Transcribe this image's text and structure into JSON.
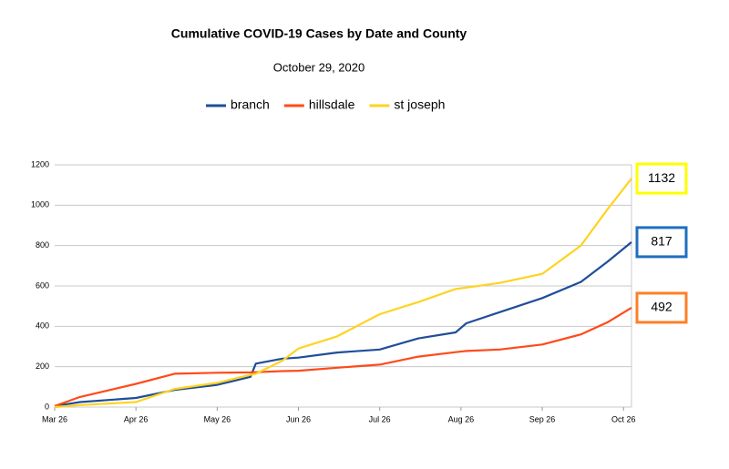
{
  "chart_data": {
    "type": "line",
    "title": "Cumulative COVID-19 Cases by Date and County",
    "subtitle": "October 29, 2020",
    "x": [
      "Mar 26",
      "Apr 5",
      "Apr 26",
      "May 10",
      "May 26",
      "Jun 8",
      "Jun 10",
      "Jun 20",
      "Jun 26",
      "Jul 10",
      "Jul 26",
      "Aug 10",
      "Aug 24",
      "Aug 28",
      "Sep 10",
      "Sep 26",
      "Oct 10",
      "Oct 20",
      "Oct 29"
    ],
    "series": [
      {
        "name": "branch",
        "color": "#1f4e99",
        "label_color": "#1f6fbf",
        "values": [
          5,
          25,
          45,
          85,
          110,
          150,
          215,
          240,
          245,
          270,
          285,
          340,
          370,
          415,
          470,
          540,
          620,
          720,
          817
        ]
      },
      {
        "name": "hillsdale",
        "color": "#ff4a1a",
        "label_color": "#ff7f27",
        "values": [
          5,
          50,
          115,
          165,
          170,
          172,
          173,
          178,
          180,
          195,
          210,
          250,
          272,
          278,
          285,
          310,
          360,
          420,
          492
        ]
      },
      {
        "name": "st joseph",
        "color": "#ffd320",
        "label_color": "#ffff00",
        "values": [
          0,
          10,
          25,
          90,
          120,
          160,
          165,
          230,
          290,
          350,
          460,
          520,
          585,
          592,
          615,
          660,
          800,
          980,
          1132
        ]
      }
    ],
    "xlim": [
      "Mar 26",
      "Oct 29"
    ],
    "xticks": [
      "Mar 26",
      "Apr 26",
      "May 26",
      "Jun 26",
      "Jul 26",
      "Aug 26",
      "Sep 26",
      "Oct 26"
    ],
    "ylim": [
      0,
      1200
    ],
    "yticks": [
      0,
      200,
      400,
      600,
      800,
      1000,
      1200
    ],
    "grid": true,
    "legend": "top"
  }
}
